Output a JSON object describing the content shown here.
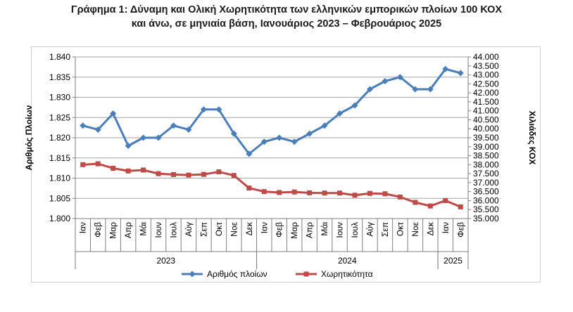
{
  "title_line1": "Γράφημα 1: Δύναμη και Ολική Χωρητικότητα των ελληνικών εμπορικών πλοίων 100 ΚΟΧ",
  "title_line2": "και άνω, σε μηνιαία βάση, Ιανουάριος 2023 – Φεβρουάριος 2025",
  "colors": {
    "ships": "#4a7ebb",
    "capacity": "#be4b48",
    "grid": "#a6a6a6"
  },
  "chart_data": {
    "type": "line",
    "title": "Γράφημα 1: Δύναμη και Ολική Χωρητικότητα των ελληνικών εμπορικών πλοίων 100 ΚΟΧ και άνω, σε μηνιαία βάση, Ιανουάριος 2023 – Φεβρουάριος 2025",
    "categories": [
      "Ιαν",
      "Φεβ",
      "Μαρ",
      "Απρ",
      "Μάι",
      "Ιουν",
      "Ιουλ",
      "Αύγ",
      "Σεπ",
      "Οκτ",
      "Νοε",
      "Δεκ",
      "Ιαν",
      "Φεβ",
      "Μαρ",
      "Απρ",
      "Μάι",
      "Ιουν",
      "Ιουλ",
      "Αύγ",
      "Σεπ",
      "Οκτ",
      "Νοε",
      "Δεκ",
      "Ιαν",
      "Φεβ"
    ],
    "years": [
      {
        "label": "2023",
        "start": 0,
        "end": 11
      },
      {
        "label": "2024",
        "start": 12,
        "end": 23
      },
      {
        "label": "2025",
        "start": 24,
        "end": 25
      }
    ],
    "ylabel_left": "Αριθμός Πλοίων",
    "ylabel_right": "Χιλιάδες ΚΟΧ",
    "ylim_left": [
      1.8,
      1.84
    ],
    "ylim_right": [
      35000,
      44000
    ],
    "yticks_left": [
      "1.800",
      "1.805",
      "1.810",
      "1.815",
      "1.820",
      "1.825",
      "1.830",
      "1.835",
      "1.840"
    ],
    "yticks_right": [
      "35.000",
      "35.500",
      "36.000",
      "36.500",
      "37.000",
      "37.500",
      "38.000",
      "38.500",
      "39.000",
      "39.500",
      "40.000",
      "40.500",
      "41.000",
      "41.500",
      "42.000",
      "42.500",
      "43.000",
      "43.500",
      "44.000"
    ],
    "grid": true,
    "legend_position": "bottom",
    "series": [
      {
        "name": "Αριθμός πλοίων",
        "axis": "left",
        "values": [
          1.823,
          1.822,
          1.826,
          1.818,
          1.82,
          1.82,
          1.823,
          1.822,
          1.827,
          1.827,
          1.821,
          1.816,
          1.819,
          1.82,
          1.819,
          1.821,
          1.823,
          1.826,
          1.828,
          1.832,
          1.834,
          1.835,
          1.832,
          1.832,
          1.837,
          1.836
        ]
      },
      {
        "name": "Χωρητικότητα",
        "axis": "right",
        "values": [
          38000,
          38050,
          37800,
          37650,
          37700,
          37500,
          37450,
          37420,
          37460,
          37600,
          37400,
          36700,
          36500,
          36450,
          36480,
          36430,
          36420,
          36420,
          36300,
          36400,
          36380,
          36200,
          35900,
          35700,
          36000,
          35650
        ]
      }
    ]
  }
}
